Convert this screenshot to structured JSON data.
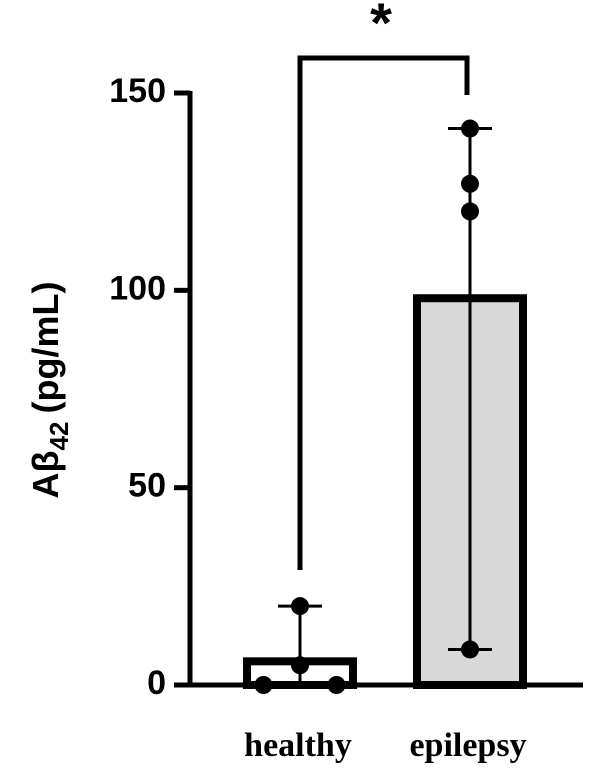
{
  "chart_data": {
    "type": "bar",
    "y_label": {
      "main": "Aβ",
      "sub": "42",
      "unit": "(pg/mL)"
    },
    "categories": [
      "healthy",
      "epilepsy"
    ],
    "values": [
      6,
      98
    ],
    "colors": [
      "#ffffff",
      "#d9d9d9"
    ],
    "points": [
      [
        20,
        5,
        0,
        0
      ],
      [
        141,
        127,
        120,
        9
      ]
    ],
    "error_low": [
      0,
      9
    ],
    "error_high": [
      20,
      141
    ],
    "annotation": "*",
    "ylim": [
      0,
      150
    ],
    "yticks": [
      0,
      50,
      100,
      150
    ]
  }
}
